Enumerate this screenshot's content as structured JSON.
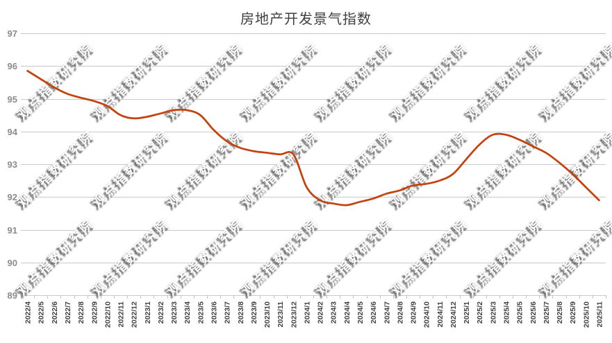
{
  "chart_data": {
    "type": "line",
    "title": "房地产开发景气指数",
    "xlabel": "",
    "ylabel": "",
    "ylim": [
      89,
      97
    ],
    "yticks": [
      97,
      96,
      95,
      94,
      93,
      92,
      91,
      90,
      89
    ],
    "grid": true,
    "legend": "none",
    "x": [
      "2022/4",
      "2022/5",
      "2022/6",
      "2022/7",
      "2022/8",
      "2022/9",
      "2022/10",
      "2022/11",
      "2022/12",
      "2023/1",
      "2023/2",
      "2023/3",
      "2023/4",
      "2023/5",
      "2023/6",
      "2023/7",
      "2023/8",
      "2023/9",
      "2023/10",
      "2023/11",
      "2023/12",
      "2024/1",
      "2024/2",
      "2024/3",
      "2024/4",
      "2024/5",
      "2024/6",
      "2024/7",
      "2024/8",
      "2024/9",
      "2024/10",
      "2024/11",
      "2024/12",
      "2025/1",
      "2025/2",
      "2025/3",
      "2025/4",
      "2025/5",
      "2025/6",
      "2025/7",
      "2025/8",
      "2025/9",
      "2025/10",
      "2025/11"
    ],
    "series": [
      {
        "name": "房地产开发景气指数",
        "color": "#c5420d",
        "smoothed": true,
        "values": [
          95.85,
          95.6,
          95.35,
          95.15,
          95.03,
          94.93,
          94.78,
          94.5,
          94.4,
          94.45,
          94.55,
          94.65,
          94.65,
          94.5,
          94.05,
          93.7,
          93.5,
          93.4,
          93.35,
          93.3,
          93.3,
          92.3,
          91.9,
          91.8,
          91.75,
          91.85,
          91.95,
          92.1,
          92.2,
          92.35,
          92.4,
          92.5,
          92.7,
          93.15,
          93.6,
          93.9,
          93.9,
          93.75,
          93.55,
          93.35,
          93.05,
          92.7,
          92.3,
          91.9
        ]
      }
    ],
    "watermark": {
      "text": "观点指数研究院",
      "color": "#ffffff"
    }
  },
  "colors": {
    "background": "#ffffff",
    "gridline": "#c9c9c9",
    "axis_line": "#c9c9c9",
    "tick": "#c2c2c2",
    "title_text": "#3f3f3f",
    "y_tick_text": "#8c8c8c",
    "x_tick_text": "#404040",
    "series_line": "#c5420d"
  }
}
